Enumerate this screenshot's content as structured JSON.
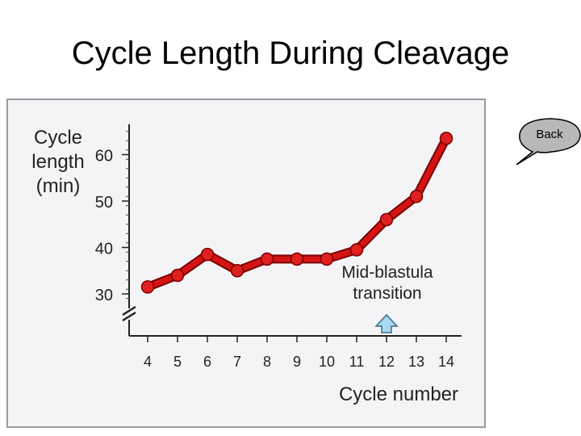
{
  "slide": {
    "title": "Cycle Length During Cleavage"
  },
  "back_button": {
    "label": "Back"
  },
  "colors": {
    "line": "#d41414",
    "line_outline": "#7a0000",
    "marker": "#e02020",
    "arrow": "#a8d8f0",
    "frame_bg": "#f4f4f6"
  },
  "chart_data": {
    "type": "line",
    "title": "",
    "ylabel_lines": [
      "Cycle",
      "length",
      "(min)"
    ],
    "xlabel": "Cycle number",
    "x": [
      4,
      5,
      6,
      7,
      8,
      9,
      10,
      11,
      12,
      13,
      14
    ],
    "y_ticks": [
      30,
      40,
      50,
      60
    ],
    "ylim": [
      30,
      60
    ],
    "axis_break": true,
    "series": [
      {
        "values": [
          31.5,
          34,
          38.5,
          35,
          37.5,
          37.5,
          37.5,
          39.5,
          46,
          51,
          63.5
        ]
      }
    ],
    "annotation": {
      "text_lines": [
        "Mid-blastula",
        "transition"
      ],
      "at_x": 12
    }
  }
}
